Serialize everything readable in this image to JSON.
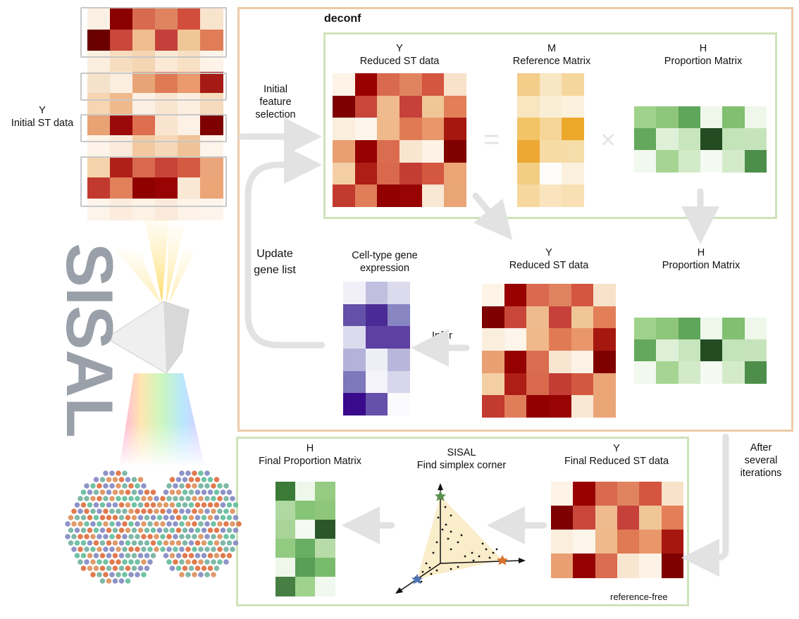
{
  "colors": {
    "deconf_frame": "#eccaa8",
    "green_frame": "#cfe3bb",
    "arrow": "#e2e2e2",
    "sisal_logo": "#9aa0a9"
  },
  "left": {
    "y_title": "Y",
    "y_subtitle": "Initial ST data",
    "logo_text": "SISAL"
  },
  "deconf": {
    "title": "deconf",
    "y_title": "Y",
    "y_subtitle": "Reduced ST data",
    "m_title": "M",
    "m_subtitle": "Reference Matrix",
    "h_title": "H",
    "h_subtitle": "Proportion Matrix",
    "equals": "=",
    "times": "×",
    "y2_title": "Y",
    "y2_subtitle": "Reduced ST data",
    "h2_title": "H",
    "h2_subtitle": "Proportion Matrix",
    "celltype_line1": "Cell-type gene",
    "celltype_line2": "expression",
    "infer": "Infer"
  },
  "flow": {
    "initial_line1": "Initial",
    "initial_line2": "feature",
    "initial_line3": "selection",
    "update_line1": "Update",
    "update_line2": "gene list",
    "after_line1": "After",
    "after_line2": "several",
    "after_line3": "iterations"
  },
  "final": {
    "h_title": "H",
    "h_subtitle": "Final Proportion Matrix",
    "sisal_title": "SISAL",
    "sisal_subtitle": "Find simplex corner",
    "y_title": "Y",
    "y_subtitle": "Final Reduced ST data",
    "tag": "reference-free"
  },
  "matrices": {
    "left_initial": [
      [
        "#fcf0e4",
        "#8b0000",
        "#d86a4f",
        "#e0845f",
        "#d24e3c",
        "#f8e3cc"
      ],
      [
        "#6b0000",
        "#c9473b",
        "#efbc8f",
        "#c4403a",
        "#f0c697",
        "#e07d57"
      ],
      [
        "#fbefe0",
        "#f7ddbf",
        "#f5d6b4",
        "#fbe9d6",
        "#f7e0c4",
        "#fdf3e8"
      ],
      [
        "#f5e2cb",
        "#fbeee0",
        "#e8a476",
        "#e07a55",
        "#ea9a6c",
        "#a51a14"
      ],
      [
        "#f5d5b2",
        "#efb98c",
        "#fbf0e3",
        "#f9e6d0",
        "#fcefe1",
        "#f6dbbc"
      ],
      [
        "#e8a274",
        "#9b0a0a",
        "#dd6e4f",
        "#f9e5cf",
        "#fdf1e6",
        "#7e0000"
      ],
      [
        "#fdf3e8",
        "#fbeadb",
        "#f2c9a0",
        "#f6d8b9",
        "#f0c397",
        "#fdf4ea"
      ],
      [
        "#f5d3ac",
        "#af2018",
        "#d8694e",
        "#c74338",
        "#d45a42",
        "#eaa57a"
      ],
      [
        "#c23a2f",
        "#e2805c",
        "#8f0000",
        "#980404",
        "#f9e8d4",
        "#eba577"
      ],
      [
        "#fdf4ea",
        "#fbecde",
        "#fdf2e6",
        "#fbeadb",
        "#fdf3e8",
        "#fdf5ec"
      ]
    ],
    "y_reduced": [
      [
        "#fdf3e6",
        "#990000",
        "#d96a4f",
        "#e08460",
        "#d45540",
        "#f8e2c9"
      ],
      [
        "#7e0000",
        "#c8473a",
        "#efbb8e",
        "#c6413a",
        "#f0c697",
        "#e27e58"
      ],
      [
        "#fbeedd",
        "#fdf4ea",
        "#efb98b",
        "#e07a55",
        "#e8966a",
        "#a6170f"
      ],
      [
        "#ea9f72",
        "#950000",
        "#da6c4f",
        "#f9e6d0",
        "#fdf2e6",
        "#800000"
      ],
      [
        "#f4cfa6",
        "#ae1d16",
        "#d9694d",
        "#c43d35",
        "#d45840",
        "#eba476"
      ],
      [
        "#c33a2f",
        "#e07e5a",
        "#920000",
        "#980404",
        "#f9e8d4",
        "#eaa577"
      ]
    ],
    "m_ref": [
      [
        "#f3cd8a",
        "#f9e6c2",
        "#f5d79e"
      ],
      [
        "#f9e5bf",
        "#fbeed6",
        "#fbf1dd"
      ],
      [
        "#f2c466",
        "#f5d698",
        "#eba82a"
      ],
      [
        "#eca833",
        "#f6dba4",
        "#f6dca8"
      ],
      [
        "#f3cd82",
        "#fefdfb",
        "#fcf1de"
      ],
      [
        "#f6d79d",
        "#f9e4bd",
        "#f8e0b4"
      ]
    ],
    "h_prop": [
      [
        "#9fd28c",
        "#8ec77c",
        "#5fa55a",
        "#eef7ea",
        "#81bf71",
        "#eef7ea"
      ],
      [
        "#63a85d",
        "#dff0d8",
        "#c8e6bd",
        "#244c23",
        "#c3e3b8",
        "#c6e4bb"
      ],
      [
        "#f1f8ee",
        "#a6d593",
        "#d2eac8",
        "#f4faf1",
        "#d4ebca",
        "#4d8e4b"
      ]
    ],
    "celltype": [
      [
        "#f1f0f8",
        "#c0bfe0",
        "#dcdbee"
      ],
      [
        "#6450a8",
        "#4a2b96",
        "#8785c2"
      ],
      [
        "#dcdbee",
        "#5e3fa2",
        "#5e3fa2"
      ],
      [
        "#b4b2d9",
        "#eeeef7",
        "#b8b6da"
      ],
      [
        "#7d78bb",
        "#f4f4fa",
        "#d7d6ec"
      ],
      [
        "#3a0a8c",
        "#6550aa",
        "#fbfbfd"
      ]
    ],
    "final_h": [
      [
        "#3b7a37",
        "#eef7ea",
        "#95cb82"
      ],
      [
        "#afd9a0",
        "#86c476",
        "#8ec77c"
      ],
      [
        "#a8d597",
        "#f4faf1",
        "#2b562a"
      ],
      [
        "#93ca81",
        "#68ae63",
        "#b7dca8"
      ],
      [
        "#eef7ea",
        "#5a9f57",
        "#79bb6d"
      ],
      [
        "#477e43",
        "#9fd28c",
        "#f1f8ee"
      ]
    ]
  }
}
